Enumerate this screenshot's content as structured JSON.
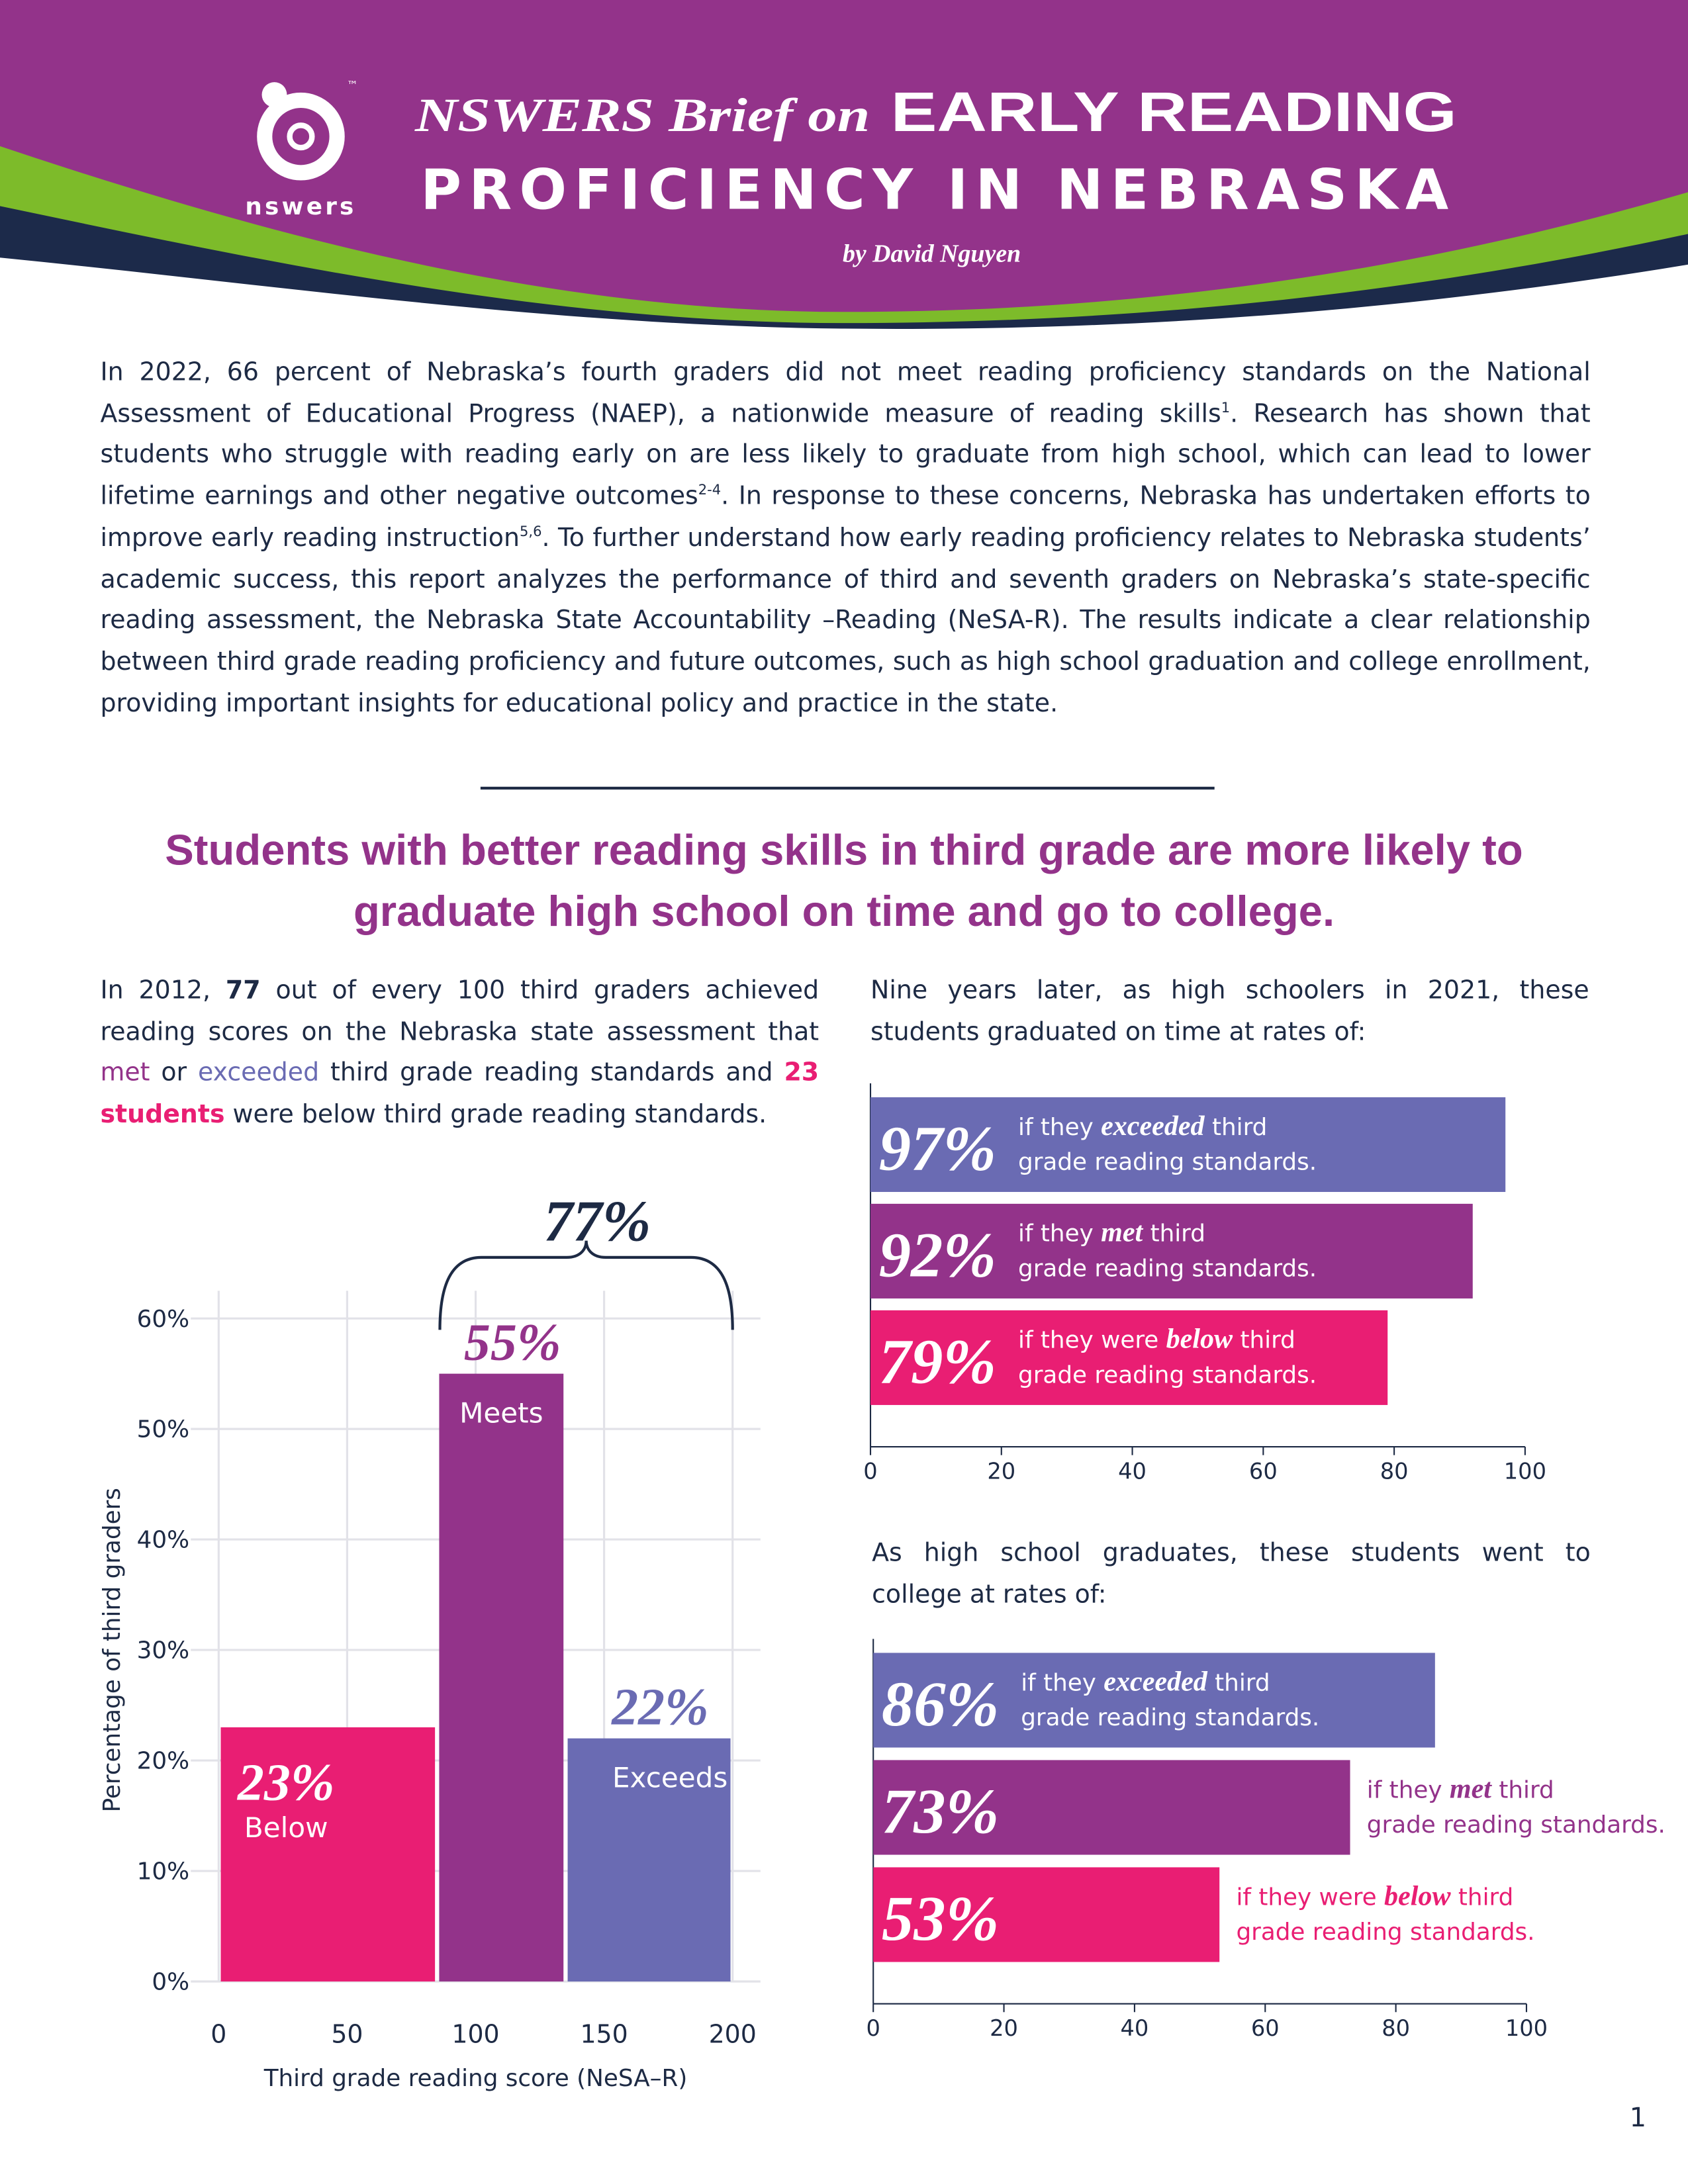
{
  "header": {
    "logo_text": "nswers",
    "trademark": "™",
    "title_lead": "NSWERS Brief on",
    "title_line1": "EARLY READING",
    "title_line2": "PROFICIENCY IN NEBRASKA",
    "byline": "by David Nguyen"
  },
  "intro": [
    "In 2022, 66 percent of Nebraska’s fourth graders did not meet reading proficiency standards on the National Assessment of Educational Progress (NAEP), a nationwide measure of reading skills",
    "1",
    ". Research has shown that students who struggle with reading early on are less likely to graduate from high school, which can lead to lower lifetime earnings and other negative outcomes",
    "2-4",
    ". In response to these concerns, Nebraska has undertaken efforts to improve early reading instruction",
    "5,6",
    ". To further understand how early reading proficiency relates to Nebraska students’ academic success, this report analyzes the performance of third and seventh graders on Nebraska’s state-specific reading assessment, the Nebraska State Accountability –Reading (NeSA-R). The results indicate a clear relationship between third grade reading proficiency and future outcomes, such as high school graduation and college enrollment, providing important insights for educational policy and practice in the state."
  ],
  "headline": "Students with better reading skills in third grade are more likely to graduate high school on time and go to college.",
  "left_text": [
    "In 2012, ",
    "77",
    " out of every 100 third graders achieved reading scores on the Nebraska state assessment that ",
    "met",
    " or ",
    "exceeded",
    " third grade reading standards and ",
    "23 students",
    " were below third grade reading standards."
  ],
  "graduation_text": "Nine years later, as high schoolers in 2021, these students graduated on time at rates of:",
  "college_text": "As high school graduates, these students went to college at rates of:",
  "chart_data": [
    {
      "type": "histogram",
      "bins": [
        0,
        85,
        135,
        200
      ],
      "values": [
        23,
        55,
        22
      ],
      "value_labels": [
        "23%",
        "55%",
        "22%"
      ],
      "categories": [
        "Below",
        "Meets",
        "Exceeds"
      ],
      "colors": [
        "#e91e73",
        "#93338a",
        "#6a6bb3"
      ],
      "xlim": [
        0,
        200
      ],
      "ylim": [
        0,
        62.5
      ],
      "xticks": [
        0,
        50,
        100,
        150,
        200
      ],
      "yticks": [
        {
          "value": 0,
          "label": "0%"
        },
        {
          "value": 10,
          "label": "10%"
        },
        {
          "value": 20,
          "label": "20%"
        },
        {
          "value": 30,
          "label": "30%"
        },
        {
          "value": 40,
          "label": "40%"
        },
        {
          "value": 50,
          "label": "50%"
        },
        {
          "value": 60,
          "label": "60%"
        }
      ],
      "xlabel": "Third grade reading score (NeSA–R)",
      "ylabel": "Percentage of third graders",
      "grid": true,
      "bracket_label": "77%"
    },
    {
      "type": "barh",
      "values": [
        97,
        92,
        79
      ],
      "value_labels": [
        "97%",
        "92%",
        "79%"
      ],
      "labels": [
        [
          "if they ",
          "exceeded",
          " third",
          "grade reading standards."
        ],
        [
          "if they ",
          "met",
          " third",
          "grade reading standards."
        ],
        [
          "if they were ",
          "below",
          " third",
          "grade reading standards."
        ]
      ],
      "colors": [
        "#6a6bb3",
        "#93338a",
        "#e91e73"
      ],
      "xlim": [
        0,
        100
      ],
      "xticks": [
        0,
        20,
        40,
        60,
        80,
        100
      ]
    },
    {
      "type": "barh",
      "values": [
        86,
        73,
        53
      ],
      "value_labels": [
        "86%",
        "73%",
        "53%"
      ],
      "labels": [
        [
          "if they ",
          "exceeded",
          " third",
          "grade reading standards."
        ],
        [
          "if they ",
          "met",
          " third",
          "grade reading standards."
        ],
        [
          "if they were ",
          "below",
          " third",
          "grade reading standards."
        ]
      ],
      "colors": [
        "#6a6bb3",
        "#93338a",
        "#e91e73"
      ],
      "xlim": [
        0,
        100
      ],
      "xticks": [
        0,
        20,
        40,
        60,
        80,
        100
      ]
    }
  ],
  "page_number": "1"
}
